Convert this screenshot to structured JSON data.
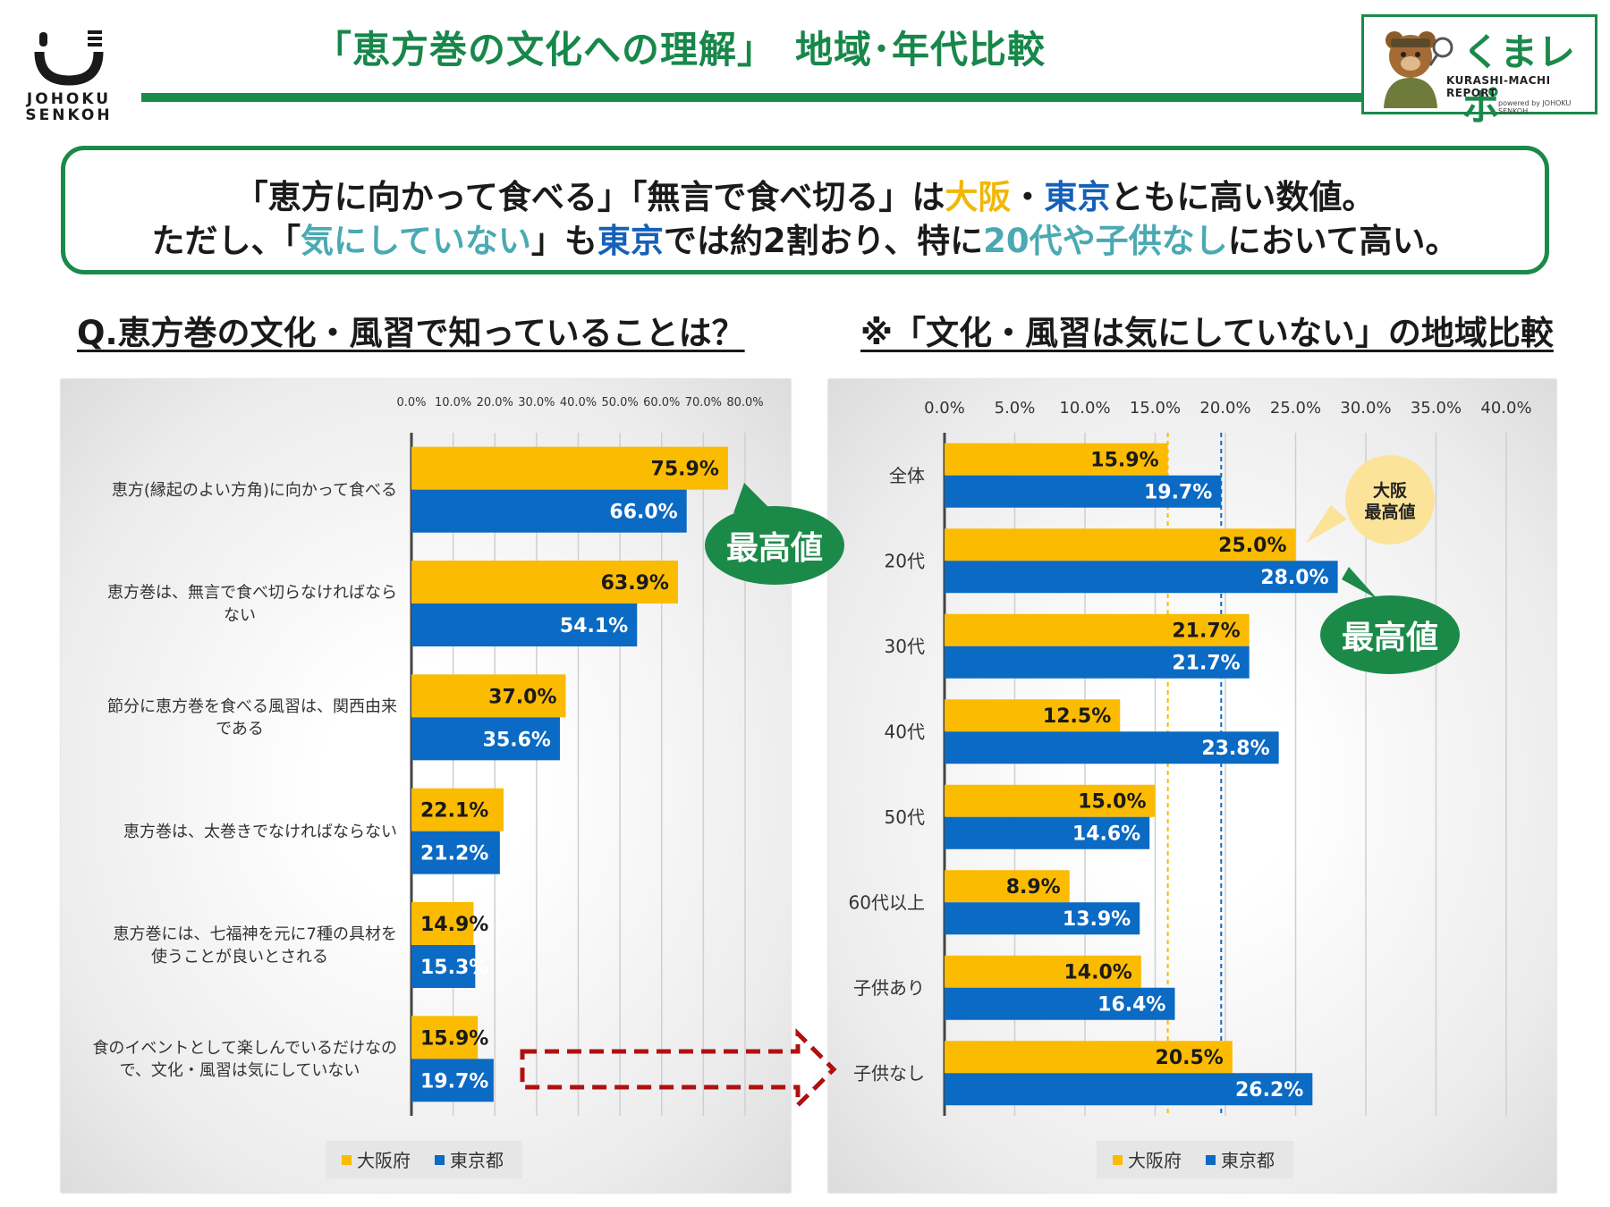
{
  "header": {
    "logo_line1": "JOHOKU",
    "logo_line2": "SENKOH",
    "title": "「恵方巻の文化への理解」　地域･年代比較",
    "badge_brand": "くまレポ",
    "badge_sub": "KURASHI-MACHI REPORT",
    "badge_powered": "powered by JOHOKU SENKOH"
  },
  "summary": {
    "line1_a": "「恵方に向かって食べる」「無言で食べ切る」は",
    "line1_osaka": "大阪",
    "line1_dot": "・",
    "line1_tokyo": "東京",
    "line1_b": "ともに高い数値。",
    "line2_a": "ただし、「",
    "line2_teal1": "気にしていない",
    "line2_b": "」も",
    "line2_tokyo": "東京",
    "line2_c": "では約2割おり、特に",
    "line2_teal2": "20代や子供なし",
    "line2_d": "において高い。"
  },
  "left_section_title": "Q.恵方巻の文化・風習で知っていることは？",
  "right_section_title": "※「文化・風習は気にしていない」の地域比較",
  "annotations": {
    "left_peak": "最高値",
    "right_peak": "最高値",
    "osaka_peak_line1": "大阪",
    "osaka_peak_line2": "最高値"
  },
  "colors": {
    "osaka": "#fbbb00",
    "tokyo": "#0b6ac3",
    "green": "#1b8a49",
    "arrow": "#b01010"
  },
  "chart_data": [
    {
      "type": "bar",
      "orientation": "horizontal",
      "categories": [
        "恵方(縁起のよい方角)に向かって食べる",
        "恵方巻は、無言で食べ切らなければならない",
        "節分に恵方巻を食べる風習は、関西由来である",
        "恵方巻は、太巻きでなければならない",
        "恵方巻には、七福神を元に7種の具材を使うことが良いとされる",
        "食のイベントとして楽しんでいるだけなので、文化・風習は気にしていない"
      ],
      "category_lines": [
        [
          "恵方(縁起のよい方角)に向かって食べる"
        ],
        [
          "恵方巻は、無言で食べ切らなければなら",
          "ない"
        ],
        [
          "節分に恵方巻を食べる風習は、関西由来",
          "である"
        ],
        [
          "恵方巻は、太巻きでなければならない"
        ],
        [
          "恵方巻には、七福神を元に7種の具材を",
          "使うことが良いとされる"
        ],
        [
          "食のイベントとして楽しんでいるだけなの",
          "で、文化・風習は気にしていない"
        ]
      ],
      "series": [
        {
          "name": "大阪府",
          "values": [
            75.9,
            63.9,
            37.0,
            22.1,
            14.9,
            15.9
          ],
          "labels": [
            "75.9%",
            "63.9%",
            "37.0%",
            "22.1%",
            "14.9%",
            "15.9%"
          ]
        },
        {
          "name": "東京都",
          "values": [
            66.0,
            54.1,
            35.6,
            21.2,
            15.3,
            19.7
          ],
          "labels": [
            "66.0%",
            "54.1%",
            "35.6%",
            "21.2%",
            "15.3%",
            "19.7%"
          ]
        }
      ],
      "xlim": [
        0,
        80
      ],
      "xticks": [
        "0.0%",
        "10.0%",
        "20.0%",
        "30.0%",
        "40.0%",
        "50.0%",
        "60.0%",
        "70.0%",
        "80.0%"
      ],
      "grid": true,
      "legend": "bottom"
    },
    {
      "type": "bar",
      "orientation": "horizontal",
      "categories": [
        "全体",
        "20代",
        "30代",
        "40代",
        "50代",
        "60代以上",
        "子供あり",
        "子供なし"
      ],
      "series": [
        {
          "name": "大阪府",
          "values": [
            15.9,
            25.0,
            21.7,
            12.5,
            15.0,
            8.9,
            14.0,
            20.5
          ],
          "labels": [
            "15.9%",
            "25.0%",
            "21.7%",
            "12.5%",
            "15.0%",
            "8.9%",
            "14.0%",
            "20.5%"
          ]
        },
        {
          "name": "東京都",
          "values": [
            19.7,
            28.0,
            21.7,
            23.8,
            14.6,
            13.9,
            16.4,
            26.2
          ],
          "labels": [
            "19.7%",
            "28.0%",
            "21.7%",
            "23.8%",
            "14.6%",
            "13.9%",
            "16.4%",
            "26.2%"
          ]
        }
      ],
      "xlim": [
        0,
        40
      ],
      "xticks": [
        "0.0%",
        "5.0%",
        "10.0%",
        "15.0%",
        "20.0%",
        "25.0%",
        "30.0%",
        "35.0%",
        "40.0%"
      ],
      "reference_lines": [
        15.9,
        19.7
      ],
      "grid": true,
      "legend": "bottom"
    }
  ]
}
